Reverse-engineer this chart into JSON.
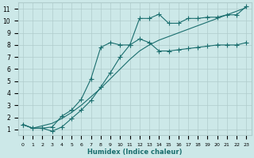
{
  "xlabel": "Humidex (Indice chaleur)",
  "xlim": [
    -0.5,
    23.5
  ],
  "ylim": [
    0.5,
    11.5
  ],
  "xticks": [
    0,
    1,
    2,
    3,
    4,
    5,
    6,
    7,
    8,
    9,
    10,
    11,
    12,
    13,
    14,
    15,
    16,
    17,
    18,
    19,
    20,
    21,
    22,
    23
  ],
  "yticks": [
    1,
    2,
    3,
    4,
    5,
    6,
    7,
    8,
    9,
    10,
    11
  ],
  "bg_color": "#cce8e8",
  "grid_color": "#b0cccc",
  "line_color": "#1a6e6e",
  "line1_x": [
    0,
    1,
    2,
    3,
    4,
    5,
    6,
    7,
    8,
    9,
    10,
    11,
    12,
    13,
    14,
    15,
    16,
    17,
    18,
    19,
    20,
    21,
    22,
    23
  ],
  "line1_y": [
    1.4,
    1.1,
    1.1,
    0.85,
    1.2,
    1.9,
    2.6,
    3.4,
    4.5,
    5.7,
    7.0,
    8.0,
    10.2,
    10.2,
    10.55,
    9.8,
    9.8,
    10.2,
    10.2,
    10.3,
    10.3,
    10.5,
    10.5,
    11.2
  ],
  "line2_x": [
    0,
    1,
    2,
    3,
    4,
    5,
    6,
    7,
    8,
    9,
    10,
    11,
    12,
    13,
    14,
    15,
    16,
    17,
    18,
    19,
    20,
    21,
    22,
    23
  ],
  "line2_y": [
    1.4,
    1.1,
    1.1,
    1.2,
    2.1,
    2.6,
    3.5,
    5.2,
    7.8,
    8.2,
    8.0,
    8.0,
    8.5,
    8.2,
    7.5,
    7.5,
    7.6,
    7.7,
    7.8,
    7.9,
    8.0,
    8.0,
    8.0,
    8.2
  ],
  "line3_x": [
    0,
    1,
    2,
    3,
    4,
    5,
    6,
    7,
    8,
    9,
    10,
    11,
    12,
    13,
    14,
    15,
    16,
    17,
    18,
    19,
    20,
    21,
    22,
    23
  ],
  "line3_y": [
    1.4,
    1.1,
    1.3,
    1.5,
    1.9,
    2.4,
    3.0,
    3.7,
    4.4,
    5.2,
    6.0,
    6.8,
    7.5,
    8.0,
    8.4,
    8.7,
    9.0,
    9.3,
    9.6,
    9.9,
    10.2,
    10.5,
    10.8,
    11.1
  ]
}
